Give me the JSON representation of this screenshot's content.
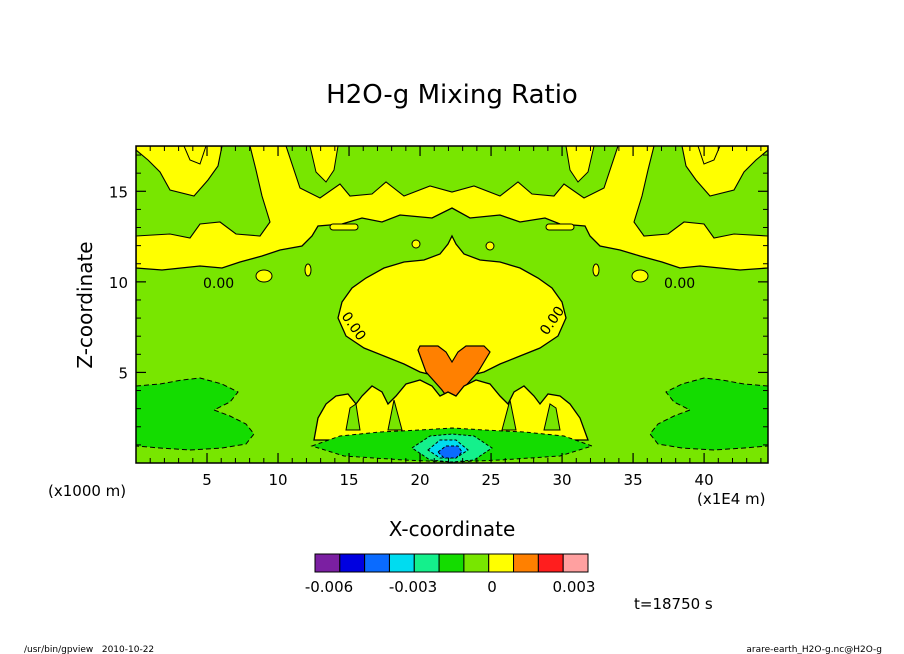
{
  "chart_data": {
    "type": "contour",
    "title": "H2O-g Mixing Ratio",
    "xlabel": "X-coordinate",
    "ylabel": "Z-coordinate",
    "x_unit": "(x1E4 m)",
    "y_unit": "(x1000 m)",
    "x_ticks": [
      5,
      10,
      15,
      20,
      25,
      30,
      35,
      40
    ],
    "y_ticks": [
      5,
      10,
      15
    ],
    "xlim": [
      0,
      44.5
    ],
    "ylim": [
      0,
      17.5
    ],
    "contour_labels": [
      "0.00",
      "0.00",
      "0.00",
      "0.00"
    ],
    "colorbar": {
      "colors": [
        "#7b1fa2",
        "#0000e0",
        "#0a6bff",
        "#00dcf0",
        "#14f08c",
        "#14dc00",
        "#78e600",
        "#ffff00",
        "#ff8000",
        "#ff1e1e",
        "#ffa0a0"
      ],
      "tick_labels": [
        "-0.006",
        "-0.003",
        "0",
        "0.003"
      ]
    },
    "time_label": "t=18750 s"
  },
  "footer": {
    "left": "/usr/bin/gpview   2010-10-22",
    "right": "arare-earth_H2O-g.nc@H2O-g"
  }
}
